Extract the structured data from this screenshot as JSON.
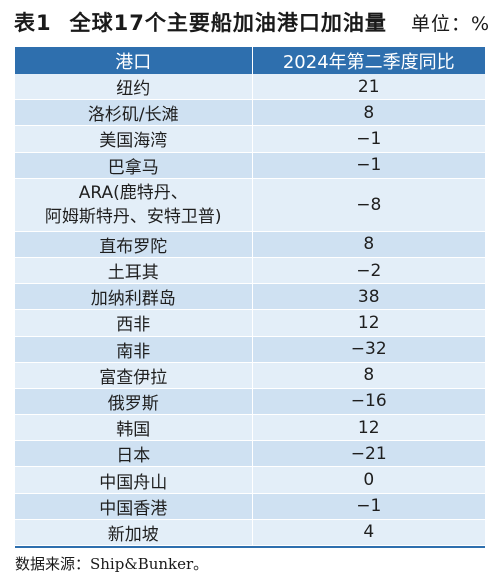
{
  "title": {
    "table_no": "表1",
    "text": "全球17个主要船加油港口加油量",
    "unit": "单位：%"
  },
  "table": {
    "headers": [
      "港口",
      "2024年第二季度同比"
    ],
    "rows": [
      {
        "port": "纽约",
        "value": "21"
      },
      {
        "port": "洛杉矶/长滩",
        "value": "8"
      },
      {
        "port": "美国海湾",
        "value": "−1"
      },
      {
        "port": "巴拿马",
        "value": "−1"
      },
      {
        "port": "ARA(鹿特丹、\n阿姆斯特丹、安特卫普)",
        "value": "−8"
      },
      {
        "port": "直布罗陀",
        "value": "8"
      },
      {
        "port": "土耳其",
        "value": "−2"
      },
      {
        "port": "加纳利群岛",
        "value": "38"
      },
      {
        "port": "西非",
        "value": "12"
      },
      {
        "port": "南非",
        "value": "−32"
      },
      {
        "port": "富查伊拉",
        "value": "8"
      },
      {
        "port": "俄罗斯",
        "value": "−16"
      },
      {
        "port": "韩国",
        "value": "12"
      },
      {
        "port": "日本",
        "value": "−21"
      },
      {
        "port": "中国舟山",
        "value": "0"
      },
      {
        "port": "中国香港",
        "value": "−1"
      },
      {
        "port": "新加坡",
        "value": "4"
      }
    ]
  },
  "source": "数据来源：Ship&Bunker。",
  "colors": {
    "header_bg": "#2e6fae",
    "row_light": "#e3eef8",
    "row_dark": "#cfe1f2"
  }
}
